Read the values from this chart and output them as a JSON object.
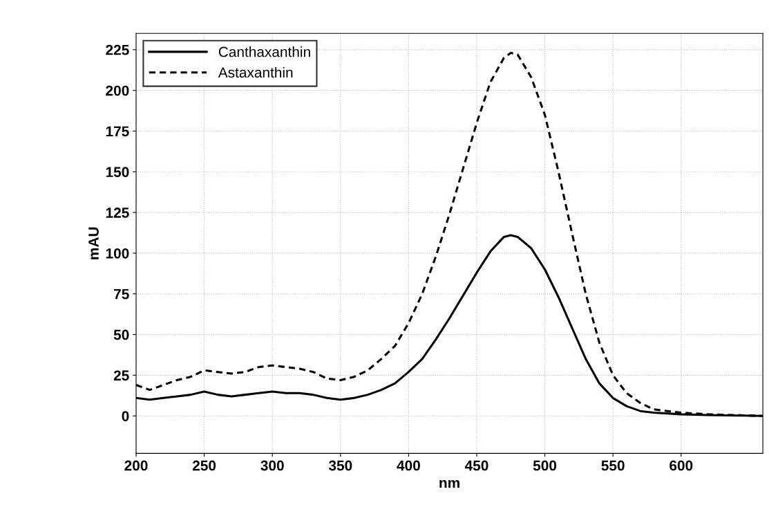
{
  "chart_data": {
    "type": "line",
    "xlabel": "nm",
    "ylabel": "mAU",
    "xlim": [
      200,
      660
    ],
    "xticks": [
      200,
      250,
      300,
      350,
      400,
      450,
      500,
      550,
      600
    ],
    "ylim": [
      -23,
      235
    ],
    "yticks": [
      0,
      25,
      50,
      75,
      100,
      125,
      150,
      175,
      200,
      225
    ],
    "grid": true,
    "legend": "top left",
    "series": [
      {
        "name": "Canthaxanthin",
        "color": "#000000",
        "line_style": "solid",
        "x": [
          200,
          210,
          220,
          230,
          240,
          250,
          260,
          270,
          280,
          290,
          300,
          310,
          320,
          330,
          340,
          350,
          360,
          370,
          380,
          390,
          400,
          410,
          420,
          430,
          440,
          450,
          460,
          470,
          475,
          480,
          490,
          500,
          510,
          520,
          530,
          540,
          550,
          560,
          570,
          580,
          600,
          620,
          660
        ],
        "values": [
          11,
          10,
          11,
          12,
          13,
          15,
          13,
          12,
          13,
          14,
          15,
          14,
          14,
          13,
          11,
          10,
          11,
          13,
          16,
          20,
          27,
          35,
          47,
          60,
          74,
          88,
          101,
          110,
          111,
          110,
          103,
          90,
          73,
          54,
          35,
          20,
          11,
          6,
          3,
          2,
          1,
          0.5,
          0
        ]
      },
      {
        "name": "Astaxanthin",
        "color": "#000000",
        "line_style": "dashed",
        "x": [
          200,
          210,
          220,
          230,
          240,
          250,
          260,
          270,
          280,
          290,
          300,
          310,
          320,
          330,
          340,
          350,
          360,
          370,
          380,
          390,
          400,
          410,
          420,
          430,
          440,
          450,
          460,
          470,
          475,
          480,
          490,
          500,
          510,
          520,
          530,
          540,
          550,
          560,
          570,
          580,
          600,
          620,
          660
        ],
        "values": [
          19,
          16,
          19,
          22,
          24,
          28,
          27,
          26,
          27,
          30,
          31,
          30,
          29,
          27,
          23,
          22,
          24,
          28,
          35,
          43,
          57,
          75,
          98,
          124,
          152,
          180,
          205,
          220,
          223,
          222,
          208,
          185,
          150,
          112,
          75,
          45,
          25,
          14,
          8,
          4,
          2,
          1,
          0
        ]
      }
    ]
  }
}
